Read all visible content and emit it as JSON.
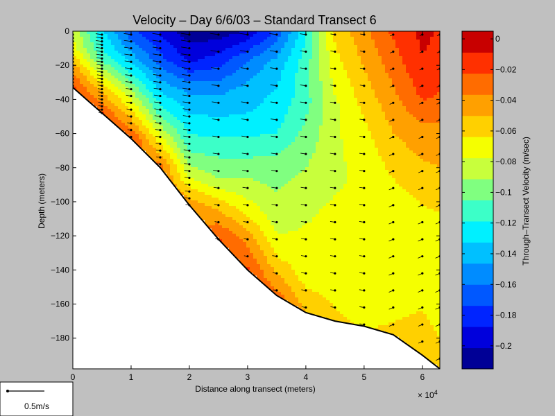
{
  "chart_data": {
    "type": "heatmap",
    "title": "Velocity – Day 6/6/03 – Standard Transect 6",
    "xlabel": "Distance along transect (meters)",
    "ylabel": "Depth (meters)",
    "x_exponent_label": "× 10",
    "x_exponent_power": "4",
    "xlim": [
      0,
      63000
    ],
    "ylim": [
      -198,
      0
    ],
    "x_ticks": [
      0,
      1,
      2,
      3,
      4,
      5,
      6
    ],
    "x_tick_labels": [
      "0",
      "1",
      "2",
      "3",
      "4",
      "5",
      "6"
    ],
    "y_ticks": [
      0,
      -20,
      -40,
      -60,
      -80,
      -100,
      -120,
      -140,
      -160,
      -180
    ],
    "y_tick_labels": [
      "0",
      "−20",
      "−40",
      "−60",
      "−80",
      "−100",
      "−120",
      "−140",
      "−160",
      "−180"
    ],
    "colorbar": {
      "label": "Through–Transect Velocity (m/sec)",
      "range": [
        -0.215,
        0.005
      ],
      "levels": 16,
      "ticks": [
        0,
        -0.02,
        -0.04,
        -0.06,
        -0.08,
        -0.1,
        -0.12,
        -0.14,
        -0.16,
        -0.18,
        -0.2
      ],
      "tick_labels": [
        "0",
        "−0.02",
        "−0.04",
        "−0.06",
        "−0.08",
        "−0.1",
        "−0.12",
        "−0.14",
        "−0.16",
        "−0.18",
        "−0.2"
      ],
      "colors": [
        "#000096",
        "#0000dc",
        "#0024ff",
        "#0058ff",
        "#008cff",
        "#00c0ff",
        "#00f0ff",
        "#3cffc8",
        "#80ff80",
        "#c8ff3c",
        "#f5ff00",
        "#ffd000",
        "#ffa000",
        "#ff6c00",
        "#ff3000",
        "#c80000"
      ]
    },
    "bathymetry": {
      "x": [
        0,
        5000,
        10000,
        15000,
        20000,
        25000,
        30000,
        35000,
        40000,
        45000,
        50000,
        55000,
        60000,
        63000
      ],
      "depth": [
        -33,
        -48,
        -63,
        -80,
        -102,
        -122,
        -140,
        -155,
        -165,
        -170,
        -173,
        -178,
        -190,
        -198
      ]
    },
    "velocity_columns": [
      {
        "x": 0,
        "values": [
          -0.08,
          -0.07,
          -0.04,
          -0.02
        ]
      },
      {
        "x": 5000,
        "values": [
          -0.13,
          -0.11,
          -0.06,
          -0.02
        ]
      },
      {
        "x": 10000,
        "values": [
          -0.17,
          -0.14,
          -0.1,
          -0.06,
          -0.02
        ]
      },
      {
        "x": 15000,
        "values": [
          -0.19,
          -0.17,
          -0.14,
          -0.11,
          -0.07,
          -0.03
        ]
      },
      {
        "x": 20000,
        "values": [
          -0.21,
          -0.19,
          -0.15,
          -0.13,
          -0.11,
          -0.08,
          -0.04
        ]
      },
      {
        "x": 25000,
        "values": [
          -0.21,
          -0.18,
          -0.15,
          -0.13,
          -0.11,
          -0.09,
          -0.05,
          -0.02
        ]
      },
      {
        "x": 30000,
        "values": [
          -0.2,
          -0.16,
          -0.14,
          -0.13,
          -0.11,
          -0.09,
          -0.07,
          -0.04,
          -0.02
        ]
      },
      {
        "x": 35000,
        "values": [
          -0.17,
          -0.14,
          -0.13,
          -0.12,
          -0.1,
          -0.09,
          -0.08,
          -0.06,
          -0.03
        ]
      },
      {
        "x": 40000,
        "values": [
          -0.12,
          -0.11,
          -0.11,
          -0.1,
          -0.09,
          -0.08,
          -0.075,
          -0.07,
          -0.05
        ]
      },
      {
        "x": 45000,
        "values": [
          -0.06,
          -0.07,
          -0.08,
          -0.08,
          -0.08,
          -0.075,
          -0.075,
          -0.07,
          -0.06
        ]
      },
      {
        "x": 50000,
        "values": [
          -0.04,
          -0.05,
          -0.06,
          -0.07,
          -0.075,
          -0.075,
          -0.075,
          -0.075,
          -0.065
        ]
      },
      {
        "x": 55000,
        "values": [
          -0.02,
          -0.03,
          -0.04,
          -0.05,
          -0.06,
          -0.07,
          -0.075,
          -0.075,
          -0.07,
          -0.06
        ]
      },
      {
        "x": 60000,
        "values": [
          -0.005,
          -0.01,
          -0.02,
          -0.04,
          -0.05,
          -0.06,
          -0.07,
          -0.075,
          -0.07,
          -0.06,
          -0.05
        ]
      },
      {
        "x": 63000,
        "values": [
          -0.01,
          -0.015,
          -0.025,
          -0.04,
          -0.05,
          -0.06,
          -0.07,
          -0.075,
          -0.075,
          -0.065,
          -0.055
        ]
      }
    ]
  },
  "scale_box": {
    "label": "0.5m/s"
  }
}
